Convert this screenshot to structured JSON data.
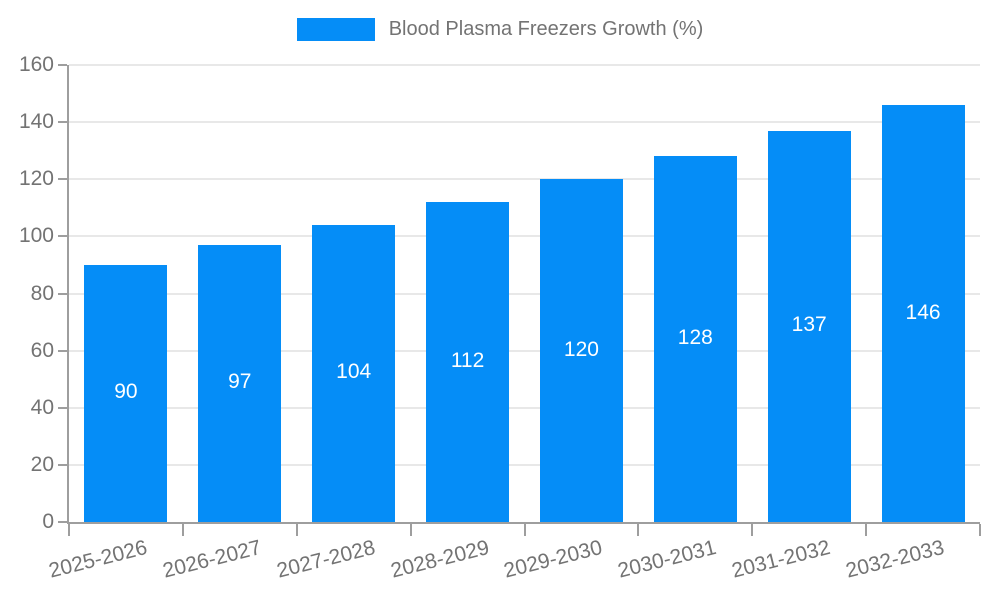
{
  "legend": {
    "label": "Blood Plasma Freezers Growth (%)"
  },
  "colors": {
    "bar": "#058df7",
    "bar_label": "#ffffff",
    "axis_line": "#9e9e9e",
    "gridline": "#e8e8e8",
    "tick_text": "#737373"
  },
  "chart_data": {
    "type": "bar",
    "title": "Blood Plasma Freezers Growth (%)",
    "categories": [
      "2025-2026",
      "2026-2027",
      "2027-2028",
      "2028-2029",
      "2029-2030",
      "2030-2031",
      "2031-2032",
      "2032-2033"
    ],
    "values": [
      90,
      97,
      104,
      112,
      120,
      128,
      137,
      146
    ],
    "xlabel": "",
    "ylabel": "",
    "ylim": [
      0,
      160
    ],
    "yticks": [
      0,
      20,
      40,
      60,
      80,
      100,
      120,
      140,
      160
    ],
    "grid": true,
    "legend_position": "top",
    "bar_labels_inside": true,
    "x_label_rotation_deg": -14
  }
}
